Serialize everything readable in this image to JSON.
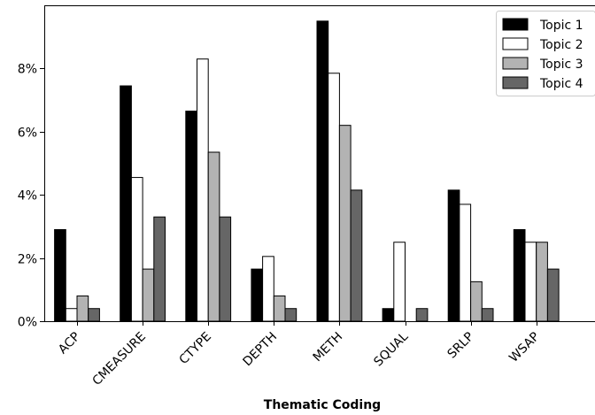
{
  "chart_data": {
    "type": "bar",
    "title": "",
    "xlabel": "Thematic Coding",
    "ylabel": "",
    "categories": [
      "ACP",
      "CMEASURE",
      "CTYPE",
      "DEPTH",
      "METH",
      "SQUAL",
      "SRLP",
      "WSAP"
    ],
    "series": [
      {
        "name": "Topic 1",
        "color": "#000000",
        "values": [
          2.9,
          7.45,
          6.65,
          1.65,
          9.5,
          0.4,
          4.15,
          2.9
        ]
      },
      {
        "name": "Topic 2",
        "color": "#ffffff",
        "values": [
          0.4,
          4.55,
          8.3,
          2.05,
          7.85,
          2.5,
          3.7,
          2.5
        ]
      },
      {
        "name": "Topic 3",
        "color": "#b3b3b3",
        "values": [
          0.8,
          1.65,
          5.35,
          0.8,
          6.2,
          0.0,
          1.25,
          2.5
        ]
      },
      {
        "name": "Topic 4",
        "color": "#666666",
        "values": [
          0.4,
          3.3,
          3.3,
          0.4,
          4.15,
          0.4,
          0.4,
          1.65
        ]
      }
    ],
    "ylim": [
      0,
      10
    ],
    "yticks": [
      0,
      2,
      4,
      6,
      8
    ],
    "ytick_labels": [
      "0%",
      "2%",
      "4%",
      "6%",
      "8%"
    ],
    "grid": false,
    "legend_position": "top-right"
  }
}
